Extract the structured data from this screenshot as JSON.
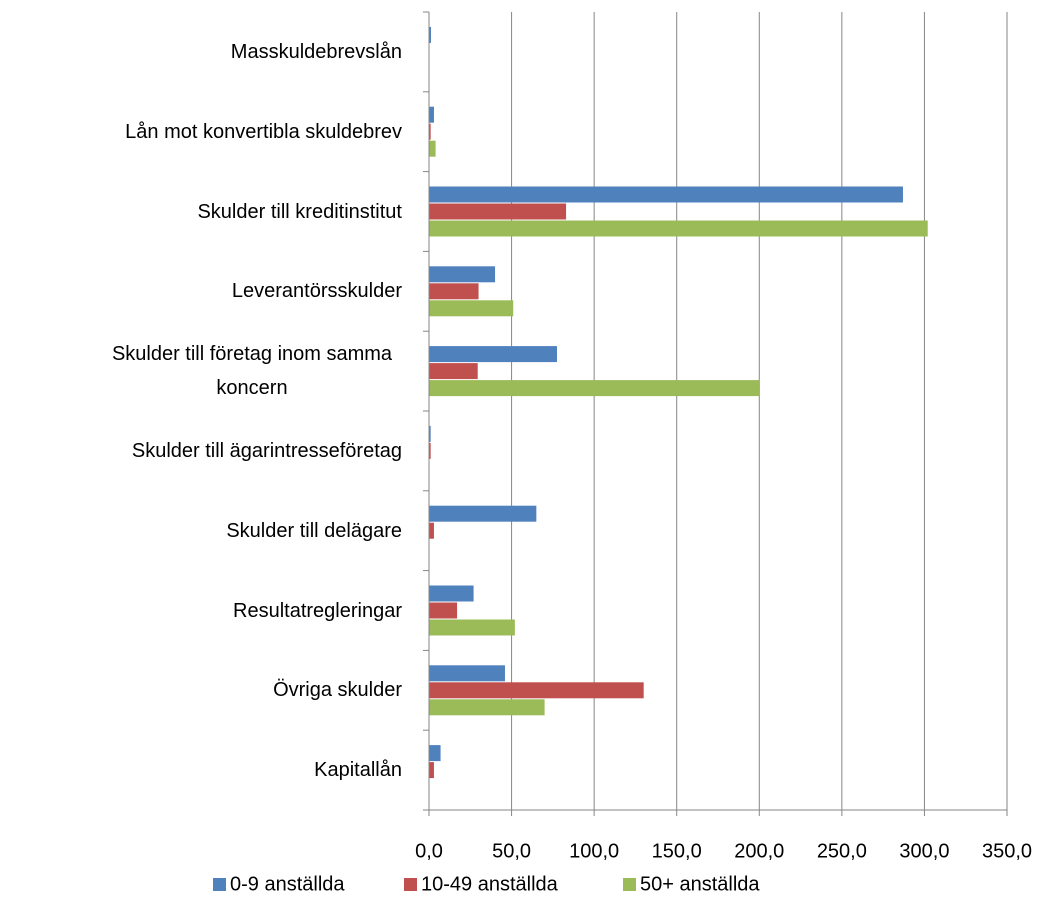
{
  "chart_data": {
    "type": "hbar",
    "categories": [
      "Masskuldebrevslån",
      "Lån mot konvertibla skuldebrev",
      "Skulder till kreditinstitut",
      "Leverantörsskulder",
      "Skulder till företag inom samma koncern",
      "Skulder till ägarintresseföretag",
      "Skulder till delägare",
      "Resultatregleringar",
      "Övriga skulder",
      "Kapitallån"
    ],
    "series": [
      {
        "name": "0-9 anställda",
        "color": "#4f81bd",
        "values": [
          1.2,
          3,
          287,
          40,
          77.5,
          1,
          65,
          27,
          46,
          7
        ]
      },
      {
        "name": "10-49 anställda",
        "color": "#c0504d",
        "values": [
          0,
          1,
          83,
          30,
          29.5,
          1,
          3,
          17,
          130,
          3
        ]
      },
      {
        "name": "50+ anställda",
        "color": "#9bbb59",
        "values": [
          0,
          4,
          302,
          51,
          200,
          0,
          0,
          52,
          70,
          0
        ]
      }
    ],
    "xlim": [
      0,
      350
    ],
    "xticks": [
      {
        "value": 0,
        "label": "0,0"
      },
      {
        "value": 50,
        "label": "50,0"
      },
      {
        "value": 100,
        "label": "100,0"
      },
      {
        "value": 150,
        "label": "150,0"
      },
      {
        "value": 200,
        "label": "200,0"
      },
      {
        "value": 250,
        "label": "250,0"
      },
      {
        "value": 300,
        "label": "300,0"
      },
      {
        "value": 350,
        "label": "350,0"
      }
    ],
    "grid": true,
    "legend": "bottom"
  }
}
